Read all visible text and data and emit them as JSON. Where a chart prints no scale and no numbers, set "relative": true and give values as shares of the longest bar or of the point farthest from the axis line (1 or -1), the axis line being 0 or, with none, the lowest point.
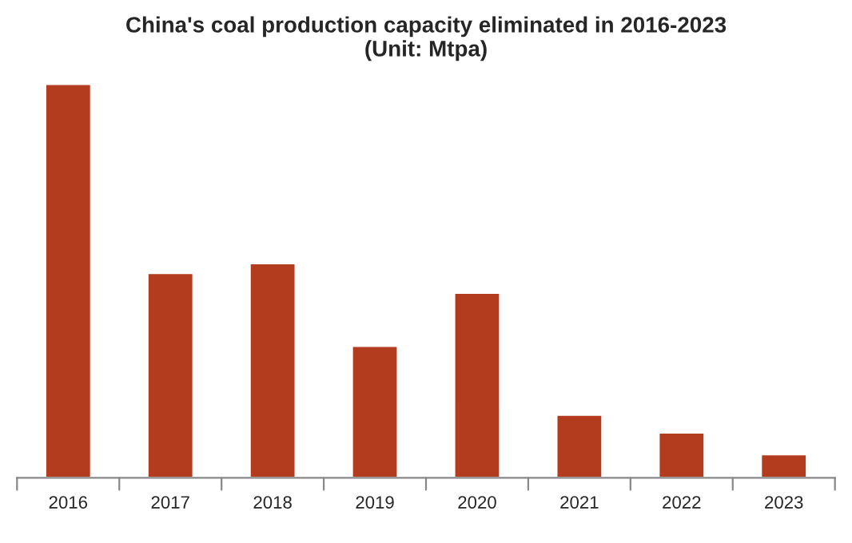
{
  "chart_data": {
    "type": "bar",
    "title": "China's coal production capacity eliminated in 2016-2023\n(Unit: Mtpa)",
    "categories": [
      "2016",
      "2017",
      "2018",
      "2019",
      "2020",
      "2021",
      "2022",
      "2023"
    ],
    "values": [
      1,
      0.52,
      0.545,
      0.335,
      0.47,
      0.16,
      0.115,
      0.06
    ],
    "color": "#b33c1e",
    "relative": true,
    "grid": false,
    "legend": false
  }
}
